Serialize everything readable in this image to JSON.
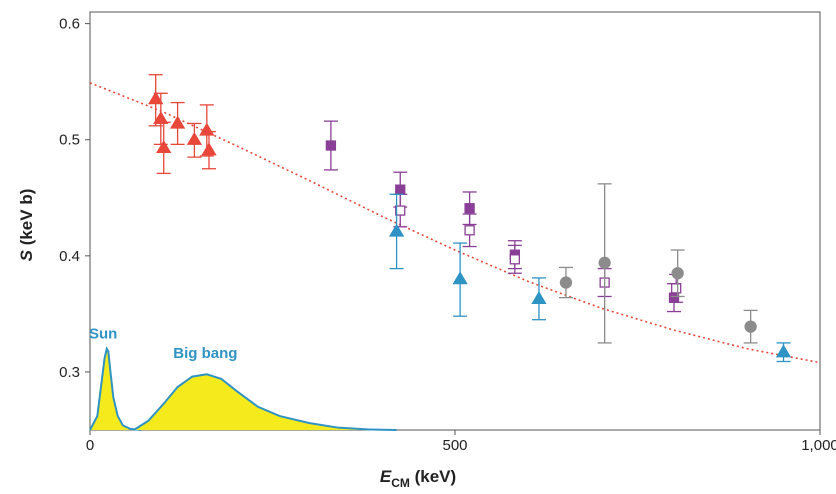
{
  "chart_data": {
    "type": "scatter",
    "title": "",
    "xlabel_main": "E",
    "xlabel_sub": "CM",
    "xlabel_unit": " (keV)",
    "ylabel_main": "S",
    "ylabel_unit": " (keV b)",
    "xlim": [
      0,
      1000
    ],
    "ylim": [
      0.25,
      0.61
    ],
    "grid": false,
    "legend": "none",
    "x_ticks": [
      0,
      500,
      1000
    ],
    "x_tick_labels": [
      "0",
      "500",
      "1,000"
    ],
    "y_ticks": [
      0.3,
      0.4,
      0.5,
      0.6
    ],
    "y_tick_labels": [
      "0.3",
      "0.4",
      "0.5",
      "0.6"
    ],
    "series": [
      {
        "marker": "triangle",
        "filled": true,
        "color": "#e8473a",
        "points": [
          {
            "x": 90,
            "y": 0.535,
            "lo": 0.512,
            "hi": 0.556
          },
          {
            "x": 97,
            "y": 0.518,
            "lo": 0.496,
            "hi": 0.54
          },
          {
            "x": 101,
            "y": 0.493,
            "lo": 0.471,
            "hi": 0.515
          },
          {
            "x": 120,
            "y": 0.514,
            "lo": 0.496,
            "hi": 0.532
          },
          {
            "x": 143,
            "y": 0.5,
            "lo": 0.485,
            "hi": 0.514
          },
          {
            "x": 160,
            "y": 0.508,
            "lo": 0.486,
            "hi": 0.53
          },
          {
            "x": 163,
            "y": 0.491,
            "lo": 0.475,
            "hi": 0.507
          }
        ]
      },
      {
        "marker": "square",
        "filled": true,
        "color": "#8a3f96",
        "points": [
          {
            "x": 330,
            "y": 0.495,
            "lo": 0.474,
            "hi": 0.516
          },
          {
            "x": 425,
            "y": 0.457,
            "lo": 0.442,
            "hi": 0.472
          },
          {
            "x": 520,
            "y": 0.441,
            "lo": 0.427,
            "hi": 0.455
          },
          {
            "x": 582,
            "y": 0.401,
            "lo": 0.389,
            "hi": 0.413
          },
          {
            "x": 800,
            "y": 0.364,
            "lo": 0.352,
            "hi": 0.376
          }
        ]
      },
      {
        "marker": "square",
        "filled": false,
        "color": "#8a3f96",
        "points": [
          {
            "x": 425,
            "y": 0.439,
            "lo": 0.425,
            "hi": 0.453
          },
          {
            "x": 520,
            "y": 0.422,
            "lo": 0.408,
            "hi": 0.436
          },
          {
            "x": 582,
            "y": 0.397,
            "lo": 0.385,
            "hi": 0.409
          },
          {
            "x": 705,
            "y": 0.377,
            "lo": 0.365,
            "hi": 0.389
          },
          {
            "x": 803,
            "y": 0.372,
            "lo": 0.36,
            "hi": 0.384
          }
        ]
      },
      {
        "marker": "triangle",
        "filled": true,
        "color": "#2f93c4",
        "points": [
          {
            "x": 420,
            "y": 0.421,
            "lo": 0.389,
            "hi": 0.453
          },
          {
            "x": 507,
            "y": 0.38,
            "lo": 0.348,
            "hi": 0.411
          },
          {
            "x": 615,
            "y": 0.363,
            "lo": 0.345,
            "hi": 0.381
          },
          {
            "x": 950,
            "y": 0.317,
            "lo": 0.309,
            "hi": 0.325
          }
        ]
      },
      {
        "marker": "circle",
        "filled": true,
        "color": "#8c8c8c",
        "points": [
          {
            "x": 652,
            "y": 0.377,
            "lo": 0.364,
            "hi": 0.39
          },
          {
            "x": 705,
            "y": 0.394,
            "lo": 0.325,
            "hi": 0.462
          },
          {
            "x": 805,
            "y": 0.385,
            "lo": 0.365,
            "hi": 0.405
          },
          {
            "x": 905,
            "y": 0.339,
            "lo": 0.325,
            "hi": 0.353
          }
        ]
      }
    ],
    "fit_curve": {
      "color": "#e8473a",
      "style": "dotted",
      "x": [
        0,
        100,
        200,
        300,
        400,
        500,
        600,
        700,
        800,
        900,
        1000
      ],
      "y": [
        0.549,
        0.524,
        0.495,
        0.465,
        0.434,
        0.405,
        0.378,
        0.355,
        0.336,
        0.32,
        0.308
      ]
    },
    "gamow_peaks": {
      "fill_color": "#f4ea1c",
      "stroke_color": "#2f93c4",
      "base_y": 0.25,
      "sun": {
        "label": "Sun",
        "x": [
          0,
          10,
          15,
          20,
          23,
          25,
          28,
          32,
          38,
          45,
          55,
          70
        ],
        "y": [
          0.25,
          0.262,
          0.287,
          0.312,
          0.32,
          0.318,
          0.3,
          0.278,
          0.262,
          0.254,
          0.251,
          0.25
        ]
      },
      "big_bang": {
        "label": "Big bang",
        "x": [
          60,
          80,
          100,
          120,
          140,
          160,
          180,
          200,
          230,
          260,
          300,
          340,
          380,
          420
        ],
        "y": [
          0.25,
          0.258,
          0.272,
          0.287,
          0.296,
          0.298,
          0.294,
          0.284,
          0.27,
          0.262,
          0.256,
          0.252,
          0.2505,
          0.25
        ]
      }
    }
  }
}
